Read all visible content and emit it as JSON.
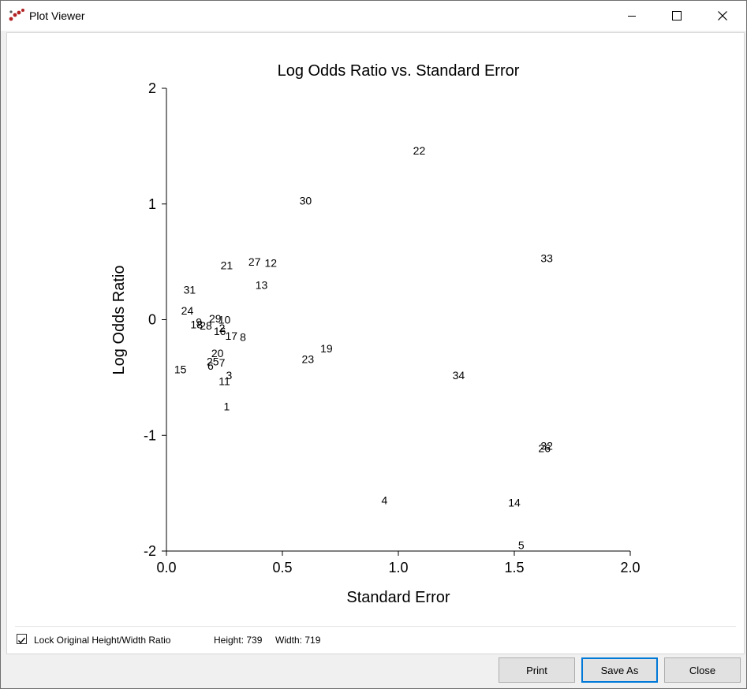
{
  "window": {
    "title": "Plot Viewer"
  },
  "chart_data": {
    "type": "scatter",
    "title": "Log Odds Ratio vs. Standard Error",
    "xlabel": "Standard Error",
    "ylabel": "Log Odds Ratio",
    "xlim": [
      0.0,
      2.0
    ],
    "ylim": [
      -2,
      2
    ],
    "xticks": [
      "0.0",
      "0.5",
      "1.0",
      "1.5",
      "2.0"
    ],
    "yticks": [
      "2",
      "1",
      "0",
      "-1",
      "-2"
    ],
    "grid": false,
    "points": [
      {
        "label": "1",
        "x": 0.26,
        "y": -0.75
      },
      {
        "label": "2",
        "x": 0.24,
        "y": -0.07
      },
      {
        "label": "3",
        "x": 0.27,
        "y": -0.48
      },
      {
        "label": "4",
        "x": 0.94,
        "y": -1.56
      },
      {
        "label": "5",
        "x": 1.53,
        "y": -1.95
      },
      {
        "label": "6",
        "x": 0.19,
        "y": -0.4
      },
      {
        "label": "7",
        "x": 0.24,
        "y": -0.37
      },
      {
        "label": "8",
        "x": 0.33,
        "y": -0.15
      },
      {
        "label": "9",
        "x": 0.14,
        "y": -0.02
      },
      {
        "label": "10",
        "x": 0.25,
        "y": 0.0
      },
      {
        "label": "11",
        "x": 0.25,
        "y": -0.53
      },
      {
        "label": "12",
        "x": 0.45,
        "y": 0.49
      },
      {
        "label": "13",
        "x": 0.41,
        "y": 0.3
      },
      {
        "label": "14",
        "x": 1.5,
        "y": -1.58
      },
      {
        "label": "15",
        "x": 0.06,
        "y": -0.43
      },
      {
        "label": "16",
        "x": 0.23,
        "y": -0.1
      },
      {
        "label": "17",
        "x": 0.28,
        "y": -0.14
      },
      {
        "label": "18",
        "x": 0.13,
        "y": -0.04
      },
      {
        "label": "19",
        "x": 0.69,
        "y": -0.25
      },
      {
        "label": "20",
        "x": 0.22,
        "y": -0.29
      },
      {
        "label": "21",
        "x": 0.26,
        "y": 0.47
      },
      {
        "label": "22",
        "x": 1.09,
        "y": 1.46
      },
      {
        "label": "23",
        "x": 0.61,
        "y": -0.34
      },
      {
        "label": "24",
        "x": 0.09,
        "y": 0.08
      },
      {
        "label": "25",
        "x": 0.2,
        "y": -0.36
      },
      {
        "label": "26",
        "x": 1.63,
        "y": -1.11
      },
      {
        "label": "27",
        "x": 0.38,
        "y": 0.5
      },
      {
        "label": "28",
        "x": 0.17,
        "y": -0.05
      },
      {
        "label": "29",
        "x": 0.21,
        "y": 0.01
      },
      {
        "label": "30",
        "x": 0.6,
        "y": 1.03
      },
      {
        "label": "31",
        "x": 0.1,
        "y": 0.26
      },
      {
        "label": "32",
        "x": 1.64,
        "y": -1.09
      },
      {
        "label": "33",
        "x": 1.64,
        "y": 0.53
      },
      {
        "label": "34",
        "x": 1.26,
        "y": -0.48
      }
    ]
  },
  "footer": {
    "lock_label": "Lock Original Height/Width Ratio",
    "lock_checked": true,
    "height_text": "Height: 739",
    "width_text": "Width: 719"
  },
  "buttons": {
    "print": "Print",
    "save_as": "Save As",
    "close": "Close"
  }
}
